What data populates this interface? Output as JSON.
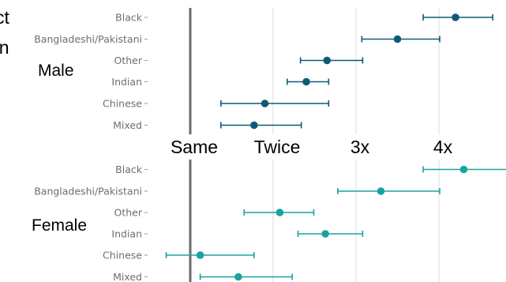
{
  "chart_data": {
    "type": "scatter",
    "style": "dot-and-whisker",
    "x_ticks": [
      {
        "label": "Same",
        "value": 1
      },
      {
        "label": "Twice",
        "value": 2
      },
      {
        "label": "3x",
        "value": 3
      },
      {
        "label": "4x",
        "value": 4
      }
    ],
    "xlim": [
      0.45,
      5.05
    ],
    "partial_title_fragments": [
      "ct",
      "on"
    ],
    "panels": [
      {
        "label": "Male",
        "color": "#0d5a78",
        "categories": [
          "Black",
          "Bangladeshi/Pakistani",
          "Other",
          "Indian",
          "Chinese",
          "Mixed"
        ],
        "estimates": [
          4.2,
          3.5,
          2.65,
          2.4,
          1.9,
          1.77
        ],
        "ci_low": [
          3.81,
          3.07,
          2.33,
          2.17,
          1.37,
          1.37
        ],
        "ci_high": [
          4.65,
          4.01,
          3.08,
          2.67,
          2.67,
          2.34
        ]
      },
      {
        "label": "Female",
        "color": "#1aa39e",
        "categories": [
          "Black",
          "Bangladeshi/Pakistani",
          "Other",
          "Indian",
          "Chinese",
          "Mixed"
        ],
        "estimates": [
          4.3,
          3.3,
          2.08,
          2.63,
          1.12,
          1.58
        ],
        "ci_low": [
          3.81,
          2.78,
          1.65,
          2.3,
          0.71,
          1.12
        ],
        "ci_high": [
          5.0,
          4.01,
          2.49,
          3.08,
          1.77,
          2.23
        ]
      }
    ]
  }
}
